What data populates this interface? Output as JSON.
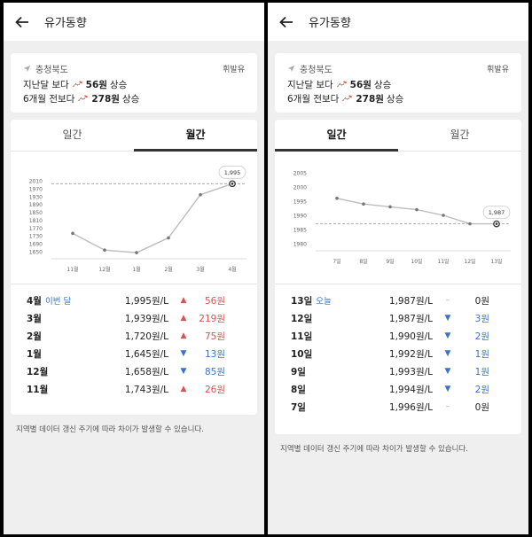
{
  "left": {
    "title": "유가동향",
    "region": "충청북도",
    "fuel": "휘발유",
    "summary": [
      {
        "prefix": "지난달 보다",
        "amount": "56원",
        "suffix": "상승"
      },
      {
        "prefix": "6개월 전보다",
        "amount": "278원",
        "suffix": "상승"
      }
    ],
    "tabs": [
      "일간",
      "월간"
    ],
    "active_tab": 1,
    "rows": [
      {
        "label": "4월",
        "tag": "이번 달",
        "price": "1,995원/L",
        "dir": "up",
        "diff": "56원"
      },
      {
        "label": "3월",
        "tag": "",
        "price": "1,939원/L",
        "dir": "up",
        "diff": "219원"
      },
      {
        "label": "2월",
        "tag": "",
        "price": "1,720원/L",
        "dir": "up",
        "diff": "75원"
      },
      {
        "label": "1월",
        "tag": "",
        "price": "1,645원/L",
        "dir": "down",
        "diff": "13원"
      },
      {
        "label": "12월",
        "tag": "",
        "price": "1,658원/L",
        "dir": "down",
        "diff": "85원"
      },
      {
        "label": "11월",
        "tag": "",
        "price": "1,743원/L",
        "dir": "up",
        "diff": "26원"
      }
    ],
    "note": "지역별 데이터 갱신 주기에 따라 차이가 발생할 수 있습니다."
  },
  "right": {
    "title": "유가동향",
    "region": "충청북도",
    "fuel": "휘발유",
    "summary": [
      {
        "prefix": "지난달 보다",
        "amount": "56원",
        "suffix": "상승"
      },
      {
        "prefix": "6개월 전보다",
        "amount": "278원",
        "suffix": "상승"
      }
    ],
    "tabs": [
      "일간",
      "월간"
    ],
    "active_tab": 0,
    "rows": [
      {
        "label": "13일",
        "tag": "오늘",
        "price": "1,987원/L",
        "dir": "flat",
        "diff": "0원"
      },
      {
        "label": "12일",
        "tag": "",
        "price": "1,987원/L",
        "dir": "down",
        "diff": "3원"
      },
      {
        "label": "11일",
        "tag": "",
        "price": "1,990원/L",
        "dir": "down",
        "diff": "2원"
      },
      {
        "label": "10일",
        "tag": "",
        "price": "1,992원/L",
        "dir": "down",
        "diff": "1원"
      },
      {
        "label": "9일",
        "tag": "",
        "price": "1,993원/L",
        "dir": "down",
        "diff": "1원"
      },
      {
        "label": "8일",
        "tag": "",
        "price": "1,994원/L",
        "dir": "down",
        "diff": "2원"
      },
      {
        "label": "7일",
        "tag": "",
        "price": "1,996원/L",
        "dir": "flat",
        "diff": "0원"
      }
    ],
    "note": "지역별 데이터 갱신 주기에 따라 차이가 발생할 수 있습니다."
  },
  "direction_symbols": {
    "up": "▲",
    "down": "▼",
    "flat": "–"
  },
  "colors": {
    "up": "#d9534f",
    "down": "#3a73c8",
    "flat": "#999999",
    "line": "#bdbdbd",
    "ref": "#999999"
  },
  "chart_data": [
    {
      "type": "line",
      "categories": [
        "11월",
        "12월",
        "1월",
        "2월",
        "3월",
        "4월"
      ],
      "values": [
        1743,
        1658,
        1645,
        1720,
        1939,
        1995
      ],
      "yticks": [
        2010,
        1970,
        1930,
        1890,
        1850,
        1810,
        1770,
        1730,
        1690,
        1650
      ],
      "ylim": [
        1650,
        2010
      ],
      "highlight_label": "1,995",
      "reference_value": 1995
    },
    {
      "type": "line",
      "categories": [
        "7일",
        "8일",
        "9일",
        "10일",
        "11일",
        "12일",
        "13일"
      ],
      "values": [
        1996,
        1994,
        1993,
        1992,
        1990,
        1987,
        1987
      ],
      "yticks": [
        2005,
        2000,
        1995,
        1990,
        1985,
        1980
      ],
      "ylim": [
        1980,
        2005
      ],
      "highlight_label": "1,987",
      "reference_value": 1987
    }
  ]
}
